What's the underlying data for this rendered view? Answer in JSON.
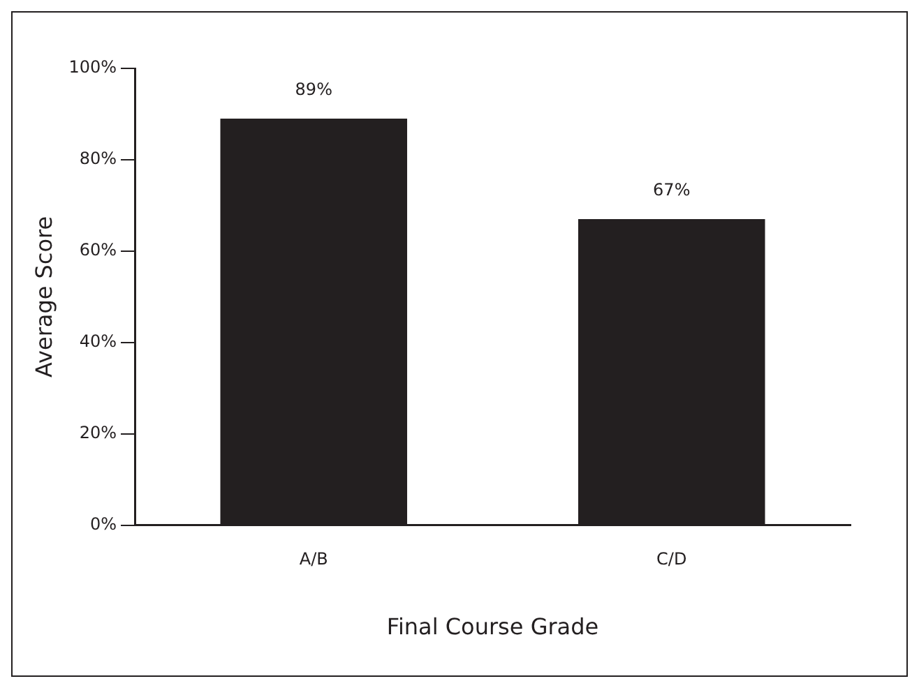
{
  "chart_data": {
    "type": "bar",
    "xlabel": "Final Course Grade",
    "ylabel": "Average Score",
    "categories": [
      "A/B",
      "C/D"
    ],
    "series": [
      {
        "color": "#231f20",
        "values": [
          89,
          67
        ]
      }
    ],
    "value_labels": [
      "89%",
      "67%"
    ],
    "ylim": [
      0,
      100
    ],
    "yticks": [
      {
        "value": 0,
        "label": "0%"
      },
      {
        "value": 20,
        "label": "20%"
      },
      {
        "value": 40,
        "label": "40%"
      },
      {
        "value": 60,
        "label": "60%"
      },
      {
        "value": 80,
        "label": "80%"
      },
      {
        "value": 100,
        "label": "100%"
      }
    ],
    "grid": false,
    "legend": false
  }
}
